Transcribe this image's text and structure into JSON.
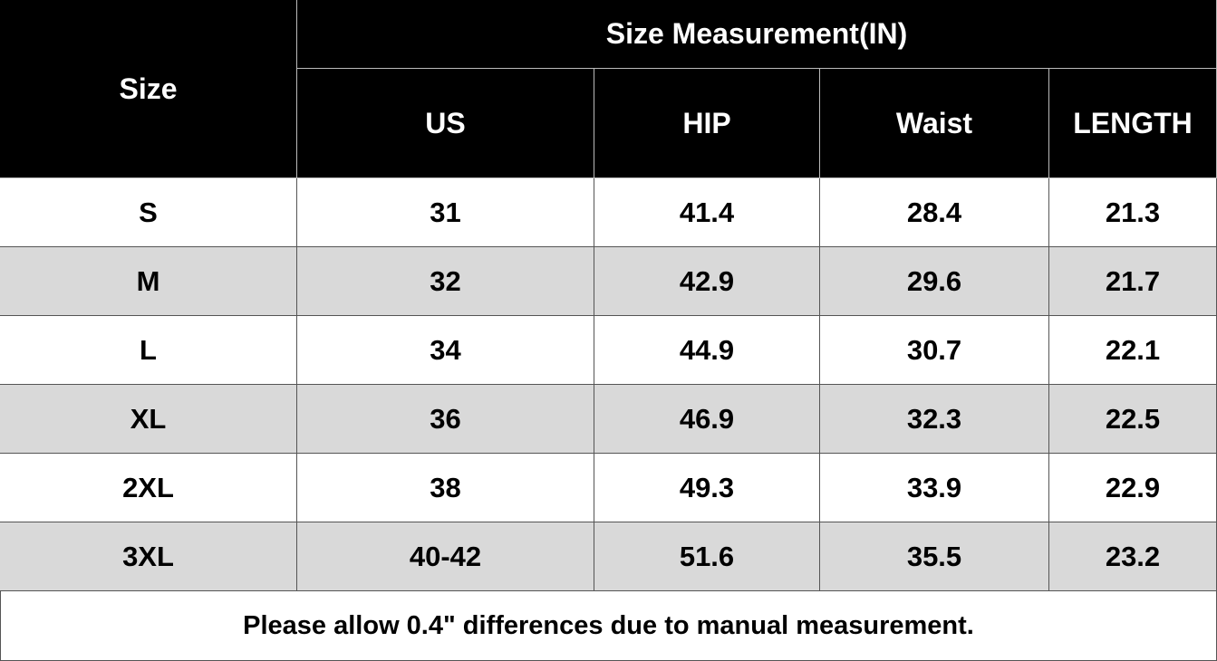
{
  "header": {
    "size": "Size",
    "title": "Size Measurement(IN)",
    "columns": [
      "US",
      "HIP",
      "Waist",
      "LENGTH"
    ]
  },
  "table": {
    "rows": [
      [
        "S",
        31,
        41.4,
        28.4,
        21.3
      ],
      [
        "M",
        32,
        42.9,
        29.6,
        21.7
      ],
      [
        "L",
        34,
        44.9,
        30.7,
        22.1
      ],
      [
        "XL",
        36,
        46.9,
        32.3,
        22.5
      ],
      [
        "2XL",
        38,
        49.3,
        33.9,
        22.9
      ],
      [
        "3XL",
        "40-42",
        51.6,
        35.5,
        23.2
      ]
    ]
  },
  "footer": {
    "note": "Please allow 0.4\" differences due to manual measurement."
  }
}
